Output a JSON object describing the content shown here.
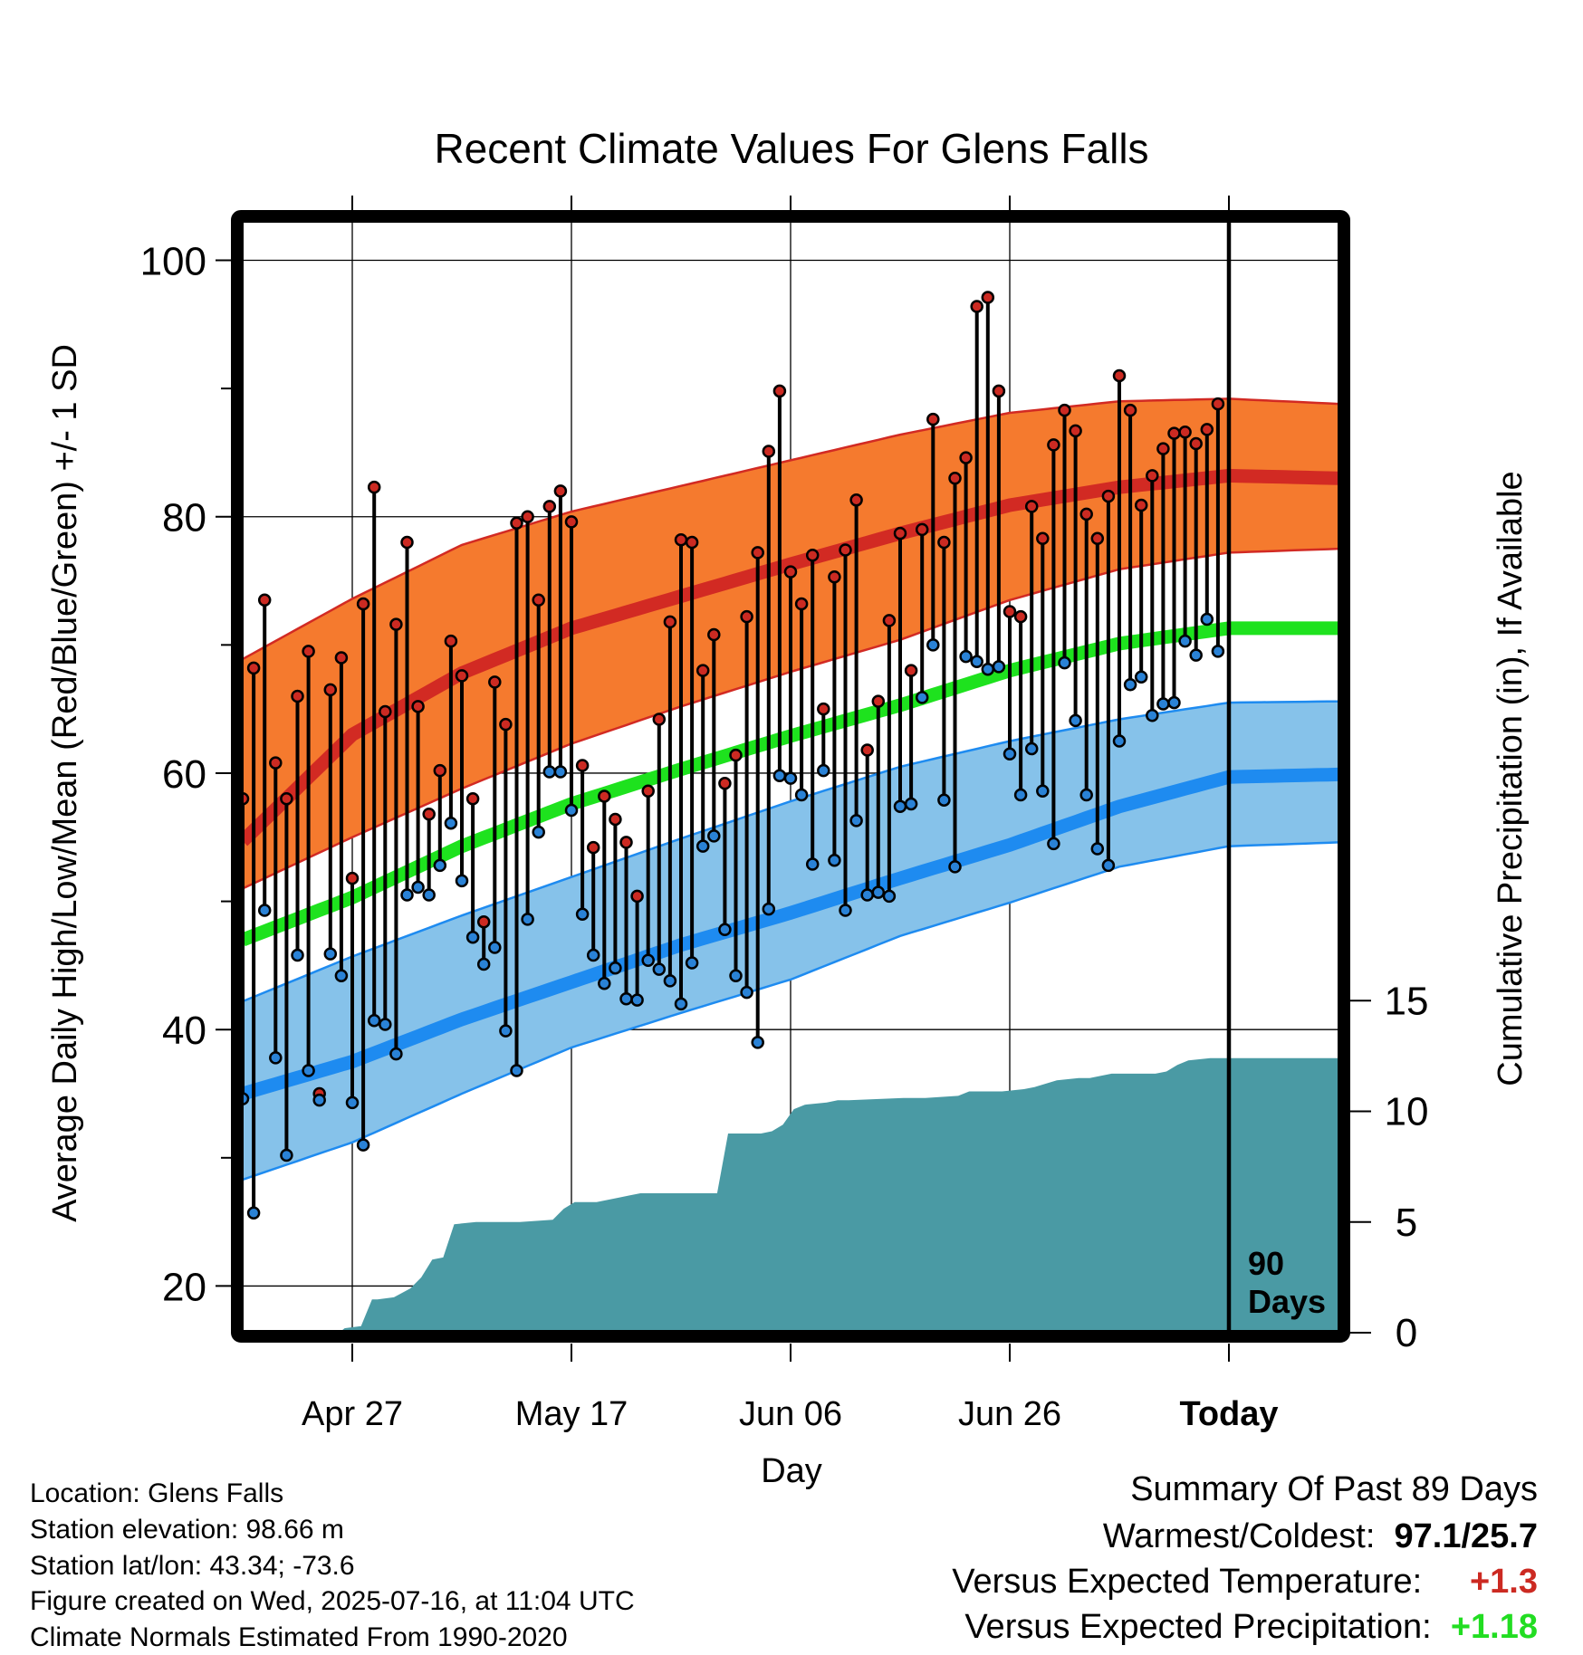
{
  "chart_data": {
    "type": "line",
    "title": "Recent Climate Values For Glens Falls",
    "ylabel": "Average Daily High/Low/Mean (Red/Blue/Green) +/- 1 SD",
    "y2label": "Cumulative Precipitation (in), If Available",
    "xlabel": "Day",
    "ylim": [
      16.5,
      103
    ],
    "y_ticks": [
      20,
      40,
      60,
      80,
      100
    ],
    "y2lim": [
      0,
      20
    ],
    "y2_ticks": [
      0,
      5,
      10,
      15
    ],
    "x_range_days": [
      0,
      100
    ],
    "x_ticks": [
      {
        "day": 10,
        "label": "Apr 27"
      },
      {
        "day": 30,
        "label": "May 17"
      },
      {
        "day": 50,
        "label": "Jun 06"
      },
      {
        "day": 70,
        "label": "Jun 26"
      },
      {
        "day": 90,
        "label": "Today"
      }
    ],
    "today_marker": {
      "day": 90,
      "label_line1": "90",
      "label_line2": "Days"
    },
    "grid": true,
    "colors": {
      "high_band": "#f57a2e",
      "high_line": "#d22a23",
      "low_band": "#86c2ea",
      "low_line": "#1e8bf0",
      "mean_line": "#1ee21e",
      "precip": "#4a9aa4",
      "high_point": "#cc2a22",
      "low_point": "#2a82d6"
    },
    "normals": {
      "days": [
        0,
        10,
        20,
        30,
        40,
        50,
        60,
        70,
        80,
        90,
        100
      ],
      "high_mean": [
        54.7,
        63.0,
        67.8,
        71.3,
        73.8,
        76.3,
        78.7,
        80.9,
        82.3,
        83.2,
        83.0
      ],
      "high_sd_upper": [
        68.9,
        73.6,
        77.8,
        80.4,
        82.4,
        84.4,
        86.4,
        88.1,
        89.0,
        89.2,
        88.8
      ],
      "high_sd_lower": [
        51.0,
        55.0,
        58.8,
        62.3,
        65.2,
        67.9,
        70.4,
        73.5,
        75.9,
        77.2,
        77.5
      ],
      "low_mean": [
        35.0,
        37.5,
        40.8,
        43.7,
        46.6,
        49.1,
        51.8,
        54.4,
        57.4,
        59.7,
        59.9
      ],
      "low_sd_upper": [
        42.2,
        45.7,
        48.9,
        51.9,
        54.9,
        57.8,
        60.5,
        62.5,
        64.2,
        65.5,
        65.6
      ],
      "low_sd_lower": [
        28.3,
        31.2,
        35.0,
        38.6,
        41.3,
        43.9,
        47.3,
        49.9,
        52.7,
        54.3,
        54.6
      ],
      "mean": [
        47.0,
        50.3,
        54.3,
        57.6,
        60.3,
        62.9,
        65.3,
        68.0,
        70.1,
        71.3,
        71.3
      ]
    },
    "daily_high": [
      58,
      68.2,
      73.5,
      60.8,
      58,
      66.0,
      69.5,
      35,
      66.5,
      69.0,
      51.8,
      73.2,
      82.3,
      64.8,
      71.6,
      78,
      65.2,
      56.8,
      60.2,
      70.3,
      67.6,
      58,
      48.4,
      67.1,
      63.8,
      79.5,
      80,
      73.5,
      80.8,
      82,
      79.6,
      60.6,
      54.2,
      58.2,
      56.4,
      54.6,
      50.4,
      58.6,
      64.2,
      71.8,
      78.2,
      78,
      68,
      70.8,
      59.2,
      61.4,
      72.2,
      77.2,
      85.1,
      89.8,
      75.7,
      73.2,
      77,
      65,
      75.3,
      77.4,
      81.3,
      61.8,
      65.6,
      71.9,
      78.7,
      68,
      79,
      87.6,
      78,
      83,
      84.6,
      96.4,
      97.1,
      89.8,
      72.6,
      72.2,
      80.8,
      78.3,
      85.6,
      88.3,
      86.7,
      80.2,
      78.3,
      81.6,
      91,
      88.3,
      80.9,
      83.2,
      85.3,
      86.5,
      86.6,
      85.7,
      86.8,
      88.8
    ],
    "daily_low": [
      34.6,
      25.7,
      49.3,
      37.8,
      30.2,
      45.8,
      36.8,
      34.5,
      45.9,
      44.2,
      34.3,
      31.0,
      40.7,
      40.4,
      38.1,
      50.5,
      51.1,
      50.5,
      52.8,
      56.1,
      51.6,
      47.2,
      45.1,
      46.4,
      39.9,
      36.8,
      48.6,
      55.4,
      60.1,
      60.1,
      57.1,
      49.0,
      45.8,
      43.6,
      44.8,
      42.4,
      42.3,
      45.4,
      44.7,
      43.8,
      42.0,
      45.2,
      54.3,
      55.1,
      47.8,
      44.2,
      42.9,
      39.0,
      49.4,
      59.8,
      59.6,
      58.3,
      52.9,
      60.2,
      53.2,
      49.3,
      56.3,
      50.5,
      50.7,
      50.4,
      57.4,
      57.6,
      65.9,
      70,
      57.9,
      52.7,
      69.1,
      68.7,
      68.1,
      68.3,
      61.5,
      58.3,
      61.9,
      58.6,
      54.5,
      68.6,
      64.1,
      58.3,
      54.1,
      52.8,
      62.5,
      66.9,
      67.5,
      64.5,
      65.4,
      65.5,
      70.3,
      69.2,
      72.0,
      69.5
    ],
    "cumulative_precip": {
      "days": [
        0,
        8.8,
        9.3,
        10.8,
        11.8,
        12.3,
        13.8,
        15.3,
        16.3,
        17.3,
        18.3,
        19.3,
        21.3,
        22.3,
        23.3,
        25.3,
        28.3,
        29.3,
        30.3,
        31.3,
        32.3,
        34.3,
        35.3,
        36.3,
        38.3,
        39.3,
        40.3,
        43.3,
        44.3,
        47.3,
        48.3,
        49.3,
        50.3,
        51.3,
        53.3,
        54.3,
        55.3,
        60.3,
        62.3,
        65.3,
        66.3,
        69.3,
        71.3,
        72.3,
        74.3,
        76.3,
        77.3,
        79.3,
        83.3,
        84.3,
        85.3,
        86.3,
        88.3,
        100
      ],
      "values": [
        0,
        0,
        0.2,
        0.3,
        1.5,
        1.5,
        1.6,
        2.0,
        2.5,
        3.3,
        3.4,
        4.9,
        5.0,
        5.0,
        5.0,
        5.0,
        5.1,
        5.6,
        5.9,
        5.9,
        5.9,
        6.1,
        6.2,
        6.3,
        6.3,
        6.3,
        6.3,
        6.3,
        9.0,
        9.0,
        9.1,
        9.4,
        10.1,
        10.3,
        10.4,
        10.5,
        10.5,
        10.6,
        10.6,
        10.7,
        10.9,
        10.9,
        11.0,
        11.1,
        11.4,
        11.5,
        11.5,
        11.7,
        11.7,
        11.8,
        12.1,
        12.3,
        12.4,
        12.4
      ]
    }
  },
  "info": {
    "location": "Location: Glens Falls",
    "elevation": "Station elevation: 98.66 m",
    "latlon": "Station lat/lon: 43.34; -73.6",
    "created": "Figure created on Wed, 2025-07-16, at 11:04 UTC",
    "normals": "Climate Normals Estimated From 1990-2020"
  },
  "summary": {
    "title": "Summary Of Past 89 Days",
    "warm_cold_label": "Warmest/Coldest:",
    "warm_cold_value": "97.1/25.7",
    "temp_label": "Versus Expected Temperature:",
    "temp_value": "+1.3",
    "temp_color": "#cc2a22",
    "precip_label": "Versus Expected Precipitation:",
    "precip_value": "+1.18",
    "precip_color": "#22dd22"
  }
}
